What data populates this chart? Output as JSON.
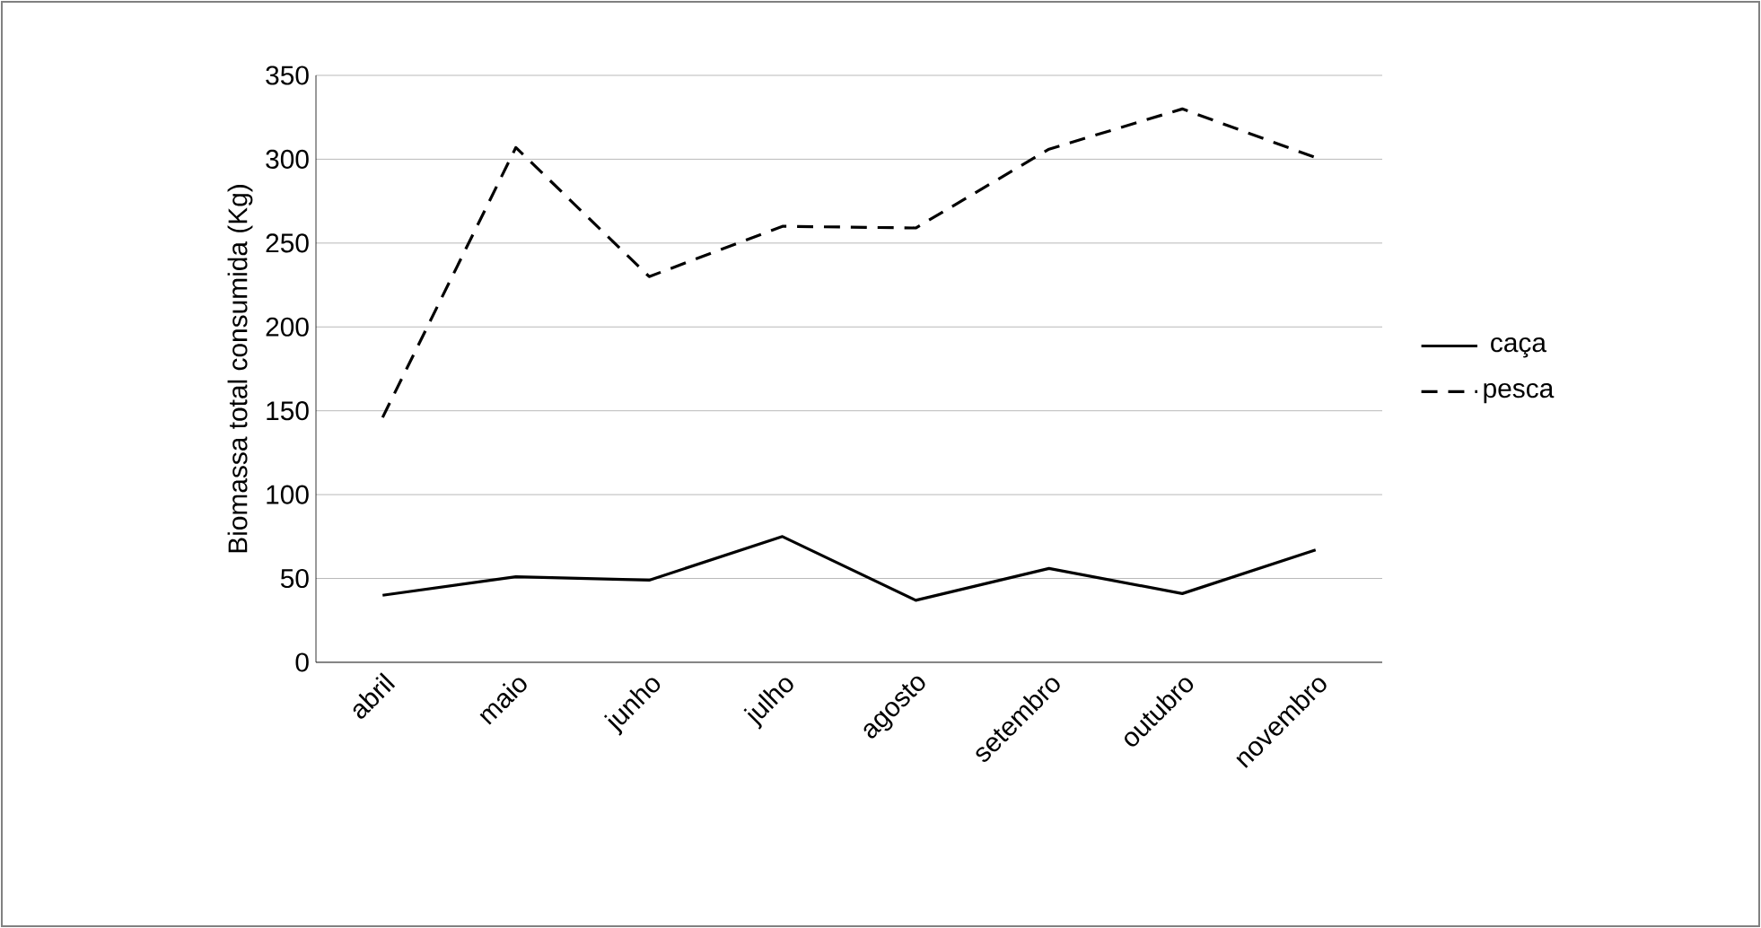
{
  "chart_data": {
    "type": "line",
    "ylabel": "Biomassa total consumida (Kg)",
    "categories": [
      "abril",
      "maio",
      "junho",
      "julho",
      "agosto",
      "setembro",
      "outubro",
      "novembro"
    ],
    "series": [
      {
        "name": "caça",
        "color": "#000000",
        "line_style": "solid",
        "values": [
          40,
          51,
          49,
          75,
          37,
          56,
          41,
          67
        ]
      },
      {
        "name": "pesca",
        "color": "#000000",
        "line_style": "dashed",
        "values": [
          146,
          307,
          230,
          260,
          259,
          306,
          330,
          301
        ]
      }
    ],
    "ylim": [
      0,
      350
    ],
    "yticks": [
      0,
      50,
      100,
      150,
      200,
      250,
      300,
      350
    ],
    "grid": "y",
    "legend": "right",
    "marker": "none"
  }
}
